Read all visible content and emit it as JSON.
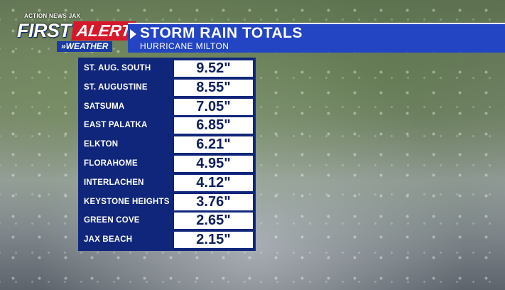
{
  "brand": {
    "network": "ACTION NEWS JAX",
    "first": "FIRST",
    "alert": "ALERT",
    "weather": "»WEATHER"
  },
  "header": {
    "title": "STORM RAIN TOTALS",
    "subtitle": "HURRICANE MILTON"
  },
  "totals": [
    {
      "location": "ST. AUG. SOUTH",
      "value": "9.52\""
    },
    {
      "location": "ST. AUGUSTINE",
      "value": "8.55\""
    },
    {
      "location": "SATSUMA",
      "value": "7.05\""
    },
    {
      "location": "EAST PALATKA",
      "value": "6.85\""
    },
    {
      "location": "ELKTON",
      "value": "6.21\""
    },
    {
      "location": "FLORAHOME",
      "value": "4.95\""
    },
    {
      "location": "INTERLACHEN",
      "value": "4.12\""
    },
    {
      "location": "KEYSTONE HEIGHTS",
      "value": "3.76\""
    },
    {
      "location": "GREEN COVE",
      "value": "2.65\""
    },
    {
      "location": "JAX BEACH",
      "value": "2.15\""
    }
  ],
  "colors": {
    "header_bg": "#2345c4",
    "table_bg": "#10267a",
    "alert_red": "#d6182a",
    "value_text": "#0e1f5c"
  }
}
